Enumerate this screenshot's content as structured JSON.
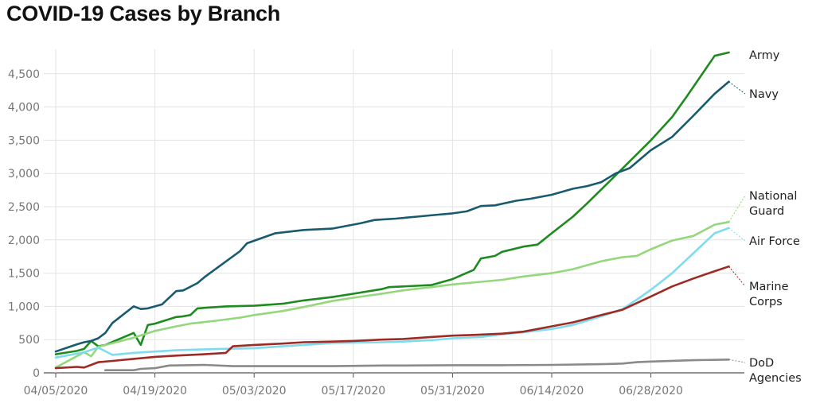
{
  "title": "COVID-19 Cases by Branch",
  "chart_data": {
    "type": "line",
    "title": "COVID-19 Cases by Branch",
    "xlabel": "",
    "ylabel": "",
    "x_ticks": [
      "04/05/2020",
      "04/19/2020",
      "05/03/2020",
      "05/17/2020",
      "05/31/2020",
      "06/14/2020",
      "06/28/2020"
    ],
    "y_ticks": [
      "0",
      "500",
      "1,000",
      "1,500",
      "2,000",
      "2,500",
      "3,000",
      "3,500",
      "4,000",
      "4,500"
    ],
    "ylim": [
      0,
      4600
    ],
    "grid": true,
    "legend": "direct labels at right end of lines",
    "series": [
      {
        "name": "Army",
        "label_lines": [
          "Army"
        ],
        "color": "#1f8a1f",
        "points": [
          [
            "04/05/2020",
            280
          ],
          [
            "04/08/2020",
            330
          ],
          [
            "04/09/2020",
            360
          ],
          [
            "04/10/2020",
            480
          ],
          [
            "04/11/2020",
            400
          ],
          [
            "04/12/2020",
            420
          ],
          [
            "04/16/2020",
            600
          ],
          [
            "04/17/2020",
            420
          ],
          [
            "04/18/2020",
            720
          ],
          [
            "04/19/2020",
            740
          ],
          [
            "04/22/2020",
            840
          ],
          [
            "04/23/2020",
            850
          ],
          [
            "04/24/2020",
            870
          ],
          [
            "04/25/2020",
            970
          ],
          [
            "04/29/2020",
            1000
          ],
          [
            "05/03/2020",
            1010
          ],
          [
            "05/07/2020",
            1040
          ],
          [
            "05/10/2020",
            1090
          ],
          [
            "05/14/2020",
            1140
          ],
          [
            "05/17/2020",
            1190
          ],
          [
            "05/21/2020",
            1260
          ],
          [
            "05/22/2020",
            1290
          ],
          [
            "05/28/2020",
            1320
          ],
          [
            "05/31/2020",
            1410
          ],
          [
            "06/03/2020",
            1550
          ],
          [
            "06/04/2020",
            1720
          ],
          [
            "06/06/2020",
            1760
          ],
          [
            "06/07/2020",
            1820
          ],
          [
            "06/10/2020",
            1900
          ],
          [
            "06/12/2020",
            1930
          ],
          [
            "06/14/2020",
            2100
          ],
          [
            "06/17/2020",
            2350
          ],
          [
            "06/19/2020",
            2550
          ],
          [
            "06/23/2020",
            2970
          ],
          [
            "06/28/2020",
            3500
          ],
          [
            "07/01/2020",
            3850
          ],
          [
            "07/03/2020",
            4150
          ],
          [
            "07/07/2020",
            4770
          ],
          [
            "07/09/2020",
            4820
          ]
        ]
      },
      {
        "name": "Navy",
        "label_lines": [
          "Navy"
        ],
        "color": "#185a6e",
        "points": [
          [
            "04/05/2020",
            320
          ],
          [
            "04/08/2020",
            430
          ],
          [
            "04/09/2020",
            460
          ],
          [
            "04/10/2020",
            480
          ],
          [
            "04/11/2020",
            520
          ],
          [
            "04/12/2020",
            600
          ],
          [
            "04/13/2020",
            750
          ],
          [
            "04/16/2020",
            1000
          ],
          [
            "04/17/2020",
            960
          ],
          [
            "04/18/2020",
            970
          ],
          [
            "04/20/2020",
            1030
          ],
          [
            "04/22/2020",
            1230
          ],
          [
            "04/23/2020",
            1240
          ],
          [
            "04/25/2020",
            1350
          ],
          [
            "04/26/2020",
            1440
          ],
          [
            "05/01/2020",
            1830
          ],
          [
            "05/02/2020",
            1950
          ],
          [
            "05/06/2020",
            2100
          ],
          [
            "05/10/2020",
            2150
          ],
          [
            "05/14/2020",
            2170
          ],
          [
            "05/18/2020",
            2250
          ],
          [
            "05/20/2020",
            2300
          ],
          [
            "05/23/2020",
            2320
          ],
          [
            "05/26/2020",
            2350
          ],
          [
            "05/29/2020",
            2380
          ],
          [
            "05/31/2020",
            2400
          ],
          [
            "06/02/2020",
            2430
          ],
          [
            "06/04/2020",
            2510
          ],
          [
            "06/06/2020",
            2520
          ],
          [
            "06/09/2020",
            2590
          ],
          [
            "06/11/2020",
            2620
          ],
          [
            "06/14/2020",
            2680
          ],
          [
            "06/17/2020",
            2770
          ],
          [
            "06/19/2020",
            2810
          ],
          [
            "06/21/2020",
            2870
          ],
          [
            "06/23/2020",
            3000
          ],
          [
            "06/25/2020",
            3080
          ],
          [
            "06/28/2020",
            3350
          ],
          [
            "07/01/2020",
            3550
          ],
          [
            "07/04/2020",
            3870
          ],
          [
            "07/07/2020",
            4200
          ],
          [
            "07/09/2020",
            4380
          ]
        ]
      },
      {
        "name": "National Guard",
        "label_lines": [
          "National",
          "Guard"
        ],
        "color": "#94d77c",
        "points": [
          [
            "04/05/2020",
            80
          ],
          [
            "04/09/2020",
            310
          ],
          [
            "04/10/2020",
            250
          ],
          [
            "04/11/2020",
            390
          ],
          [
            "04/16/2020",
            530
          ],
          [
            "04/19/2020",
            630
          ],
          [
            "04/22/2020",
            700
          ],
          [
            "04/24/2020",
            740
          ],
          [
            "04/28/2020",
            790
          ],
          [
            "05/01/2020",
            830
          ],
          [
            "05/03/2020",
            870
          ],
          [
            "05/07/2020",
            930
          ],
          [
            "05/10/2020",
            990
          ],
          [
            "05/14/2020",
            1080
          ],
          [
            "05/17/2020",
            1130
          ],
          [
            "05/21/2020",
            1190
          ],
          [
            "05/24/2020",
            1240
          ],
          [
            "05/28/2020",
            1290
          ],
          [
            "05/31/2020",
            1330
          ],
          [
            "06/04/2020",
            1370
          ],
          [
            "06/07/2020",
            1400
          ],
          [
            "06/10/2020",
            1450
          ],
          [
            "06/14/2020",
            1500
          ],
          [
            "06/17/2020",
            1560
          ],
          [
            "06/21/2020",
            1680
          ],
          [
            "06/24/2020",
            1740
          ],
          [
            "06/26/2020",
            1760
          ],
          [
            "06/28/2020",
            1860
          ],
          [
            "07/01/2020",
            1990
          ],
          [
            "07/04/2020",
            2060
          ],
          [
            "07/07/2020",
            2230
          ],
          [
            "07/09/2020",
            2270
          ]
        ]
      },
      {
        "name": "Air Force",
        "label_lines": [
          "Air Force"
        ],
        "color": "#7fdcef",
        "points": [
          [
            "04/05/2020",
            230
          ],
          [
            "04/09/2020",
            310
          ],
          [
            "04/11/2020",
            380
          ],
          [
            "04/13/2020",
            270
          ],
          [
            "04/16/2020",
            300
          ],
          [
            "04/19/2020",
            320
          ],
          [
            "04/22/2020",
            340
          ],
          [
            "04/25/2020",
            350
          ],
          [
            "04/28/2020",
            360
          ],
          [
            "05/03/2020",
            370
          ],
          [
            "05/07/2020",
            400
          ],
          [
            "05/10/2020",
            420
          ],
          [
            "05/14/2020",
            450
          ],
          [
            "05/21/2020",
            460
          ],
          [
            "05/24/2020",
            470
          ],
          [
            "05/28/2020",
            490
          ],
          [
            "05/31/2020",
            520
          ],
          [
            "06/04/2020",
            540
          ],
          [
            "06/07/2020",
            580
          ],
          [
            "06/10/2020",
            610
          ],
          [
            "06/14/2020",
            660
          ],
          [
            "06/17/2020",
            720
          ],
          [
            "06/21/2020",
            850
          ],
          [
            "06/24/2020",
            960
          ],
          [
            "06/26/2020",
            1100
          ],
          [
            "06/28/2020",
            1250
          ],
          [
            "07/01/2020",
            1500
          ],
          [
            "07/04/2020",
            1800
          ],
          [
            "07/07/2020",
            2100
          ],
          [
            "07/09/2020",
            2180
          ]
        ]
      },
      {
        "name": "Marine Corps",
        "label_lines": [
          "Marine",
          "Corps"
        ],
        "color": "#9e2a24",
        "points": [
          [
            "04/05/2020",
            70
          ],
          [
            "04/08/2020",
            90
          ],
          [
            "04/09/2020",
            80
          ],
          [
            "04/10/2020",
            120
          ],
          [
            "04/11/2020",
            160
          ],
          [
            "04/13/2020",
            180
          ],
          [
            "04/16/2020",
            210
          ],
          [
            "04/19/2020",
            240
          ],
          [
            "04/22/2020",
            260
          ],
          [
            "04/26/2020",
            280
          ],
          [
            "04/29/2020",
            300
          ],
          [
            "04/30/2020",
            400
          ],
          [
            "05/03/2020",
            420
          ],
          [
            "05/07/2020",
            440
          ],
          [
            "05/10/2020",
            460
          ],
          [
            "05/14/2020",
            470
          ],
          [
            "05/17/2020",
            480
          ],
          [
            "05/21/2020",
            500
          ],
          [
            "05/24/2020",
            510
          ],
          [
            "05/28/2020",
            540
          ],
          [
            "05/31/2020",
            560
          ],
          [
            "06/03/2020",
            570
          ],
          [
            "06/07/2020",
            590
          ],
          [
            "06/10/2020",
            620
          ],
          [
            "06/14/2020",
            700
          ],
          [
            "06/17/2020",
            760
          ],
          [
            "06/21/2020",
            870
          ],
          [
            "06/24/2020",
            950
          ],
          [
            "06/28/2020",
            1150
          ],
          [
            "07/01/2020",
            1300
          ],
          [
            "07/04/2020",
            1420
          ],
          [
            "07/07/2020",
            1530
          ],
          [
            "07/09/2020",
            1600
          ]
        ]
      },
      {
        "name": "DoD Agencies",
        "label_lines": [
          "DoD",
          "Agencies"
        ],
        "color": "#8a8a8a",
        "points": [
          [
            "04/12/2020",
            40
          ],
          [
            "04/16/2020",
            40
          ],
          [
            "04/17/2020",
            60
          ],
          [
            "04/19/2020",
            70
          ],
          [
            "04/21/2020",
            110
          ],
          [
            "04/26/2020",
            120
          ],
          [
            "04/30/2020",
            100
          ],
          [
            "05/03/2020",
            100
          ],
          [
            "05/07/2020",
            100
          ],
          [
            "05/14/2020",
            100
          ],
          [
            "05/21/2020",
            110
          ],
          [
            "05/24/2020",
            110
          ],
          [
            "05/31/2020",
            115
          ],
          [
            "06/07/2020",
            115
          ],
          [
            "06/14/2020",
            120
          ],
          [
            "06/21/2020",
            130
          ],
          [
            "06/24/2020",
            140
          ],
          [
            "06/26/2020",
            160
          ],
          [
            "06/28/2020",
            170
          ],
          [
            "07/04/2020",
            190
          ],
          [
            "07/09/2020",
            200
          ]
        ]
      }
    ]
  }
}
